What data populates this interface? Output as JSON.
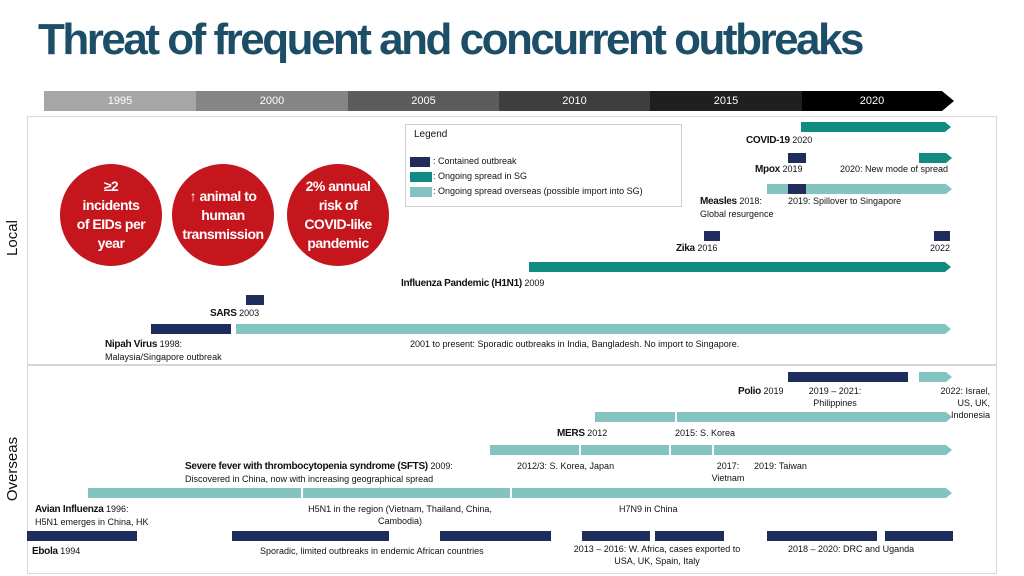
{
  "title": "Threat of frequent and concurrent outbreaks",
  "timeline": {
    "years": [
      "1995",
      "2000",
      "2005",
      "2010",
      "2015",
      "2020"
    ],
    "colors": [
      "#a6a6a6",
      "#858585",
      "#5c5c5c",
      "#3e3e3e",
      "#1f1f1f",
      "#000000"
    ]
  },
  "sections": {
    "local": "Local",
    "overseas": "Overseas"
  },
  "legend": {
    "title": "Legend",
    "contained": ": Contained outbreak",
    "ongoing_sg": ": Ongoing spread in SG",
    "ongoing_overseas": ": Ongoing spread overseas (possible import into SG)"
  },
  "callouts": {
    "eids": "≥2 incidents of EIDs per year",
    "animal": "↑ animal to human transmission",
    "risk": "2% annual risk of COVID-like pandemic"
  },
  "colors": {
    "teal": "#118a82",
    "light_teal": "#84c4c0",
    "navy": "#1f2d5c",
    "red": "#c4161c",
    "title": "#1d4e68"
  },
  "local": {
    "covid_name": "COVID-19",
    "covid_year": "2020",
    "mpox_name": "Mpox",
    "mpox_year": "2019",
    "mpox_note": "2020: New mode of spread",
    "measles_name": "Measles",
    "measles_year": "2018:",
    "measles_note": "Global resurgence",
    "measles_note2": "2019: Spillover to Singapore",
    "zika_name": "Zika",
    "zika_year": "2016",
    "zika_2022": "2022",
    "h1n1_name": "Influenza Pandemic (H1N1)",
    "h1n1_year": "2009",
    "sars_name": "SARS",
    "sars_year": "2003",
    "nipah_name": "Nipah Virus",
    "nipah_year": "1998:",
    "nipah_note": "Malaysia/Singapore outbreak",
    "nipah_note2": "2001 to present: Sporadic outbreaks in India, Bangladesh. No import to Singapore."
  },
  "overseas": {
    "polio_name": "Polio",
    "polio_year": "2019",
    "polio_note1": "2019 – 2021: Philippines",
    "polio_note2": "2022: Israel, US, UK, Indonesia",
    "mers_name": "MERS",
    "mers_year": "2012",
    "mers_note": "2015: S. Korea",
    "sfts_name": "Severe fever with thrombocytopenia syndrome (SFTS)",
    "sfts_year": "2009:",
    "sfts_note": "Discovered in China, now with increasing geographical spread",
    "sfts_note2": "2012/3: S. Korea, Japan",
    "sfts_note3": "2017: Vietnam",
    "sfts_note4": "2019: Taiwan",
    "avian_name": "Avian Influenza",
    "avian_year": "1996:",
    "avian_note": "H5N1 emerges in China, HK",
    "avian_note2": "H5N1 in the region (Vietnam, Thailand, China, Cambodia)",
    "avian_note3": "H7N9 in China",
    "ebola_name": "Ebola",
    "ebola_year": "1994",
    "ebola_note1": "Sporadic, limited outbreaks in endemic African countries",
    "ebola_note2": "2013 – 2016: W. Africa, cases exported to USA, UK, Spain, Italy",
    "ebola_note3": "2018 – 2020: DRC and Uganda"
  }
}
